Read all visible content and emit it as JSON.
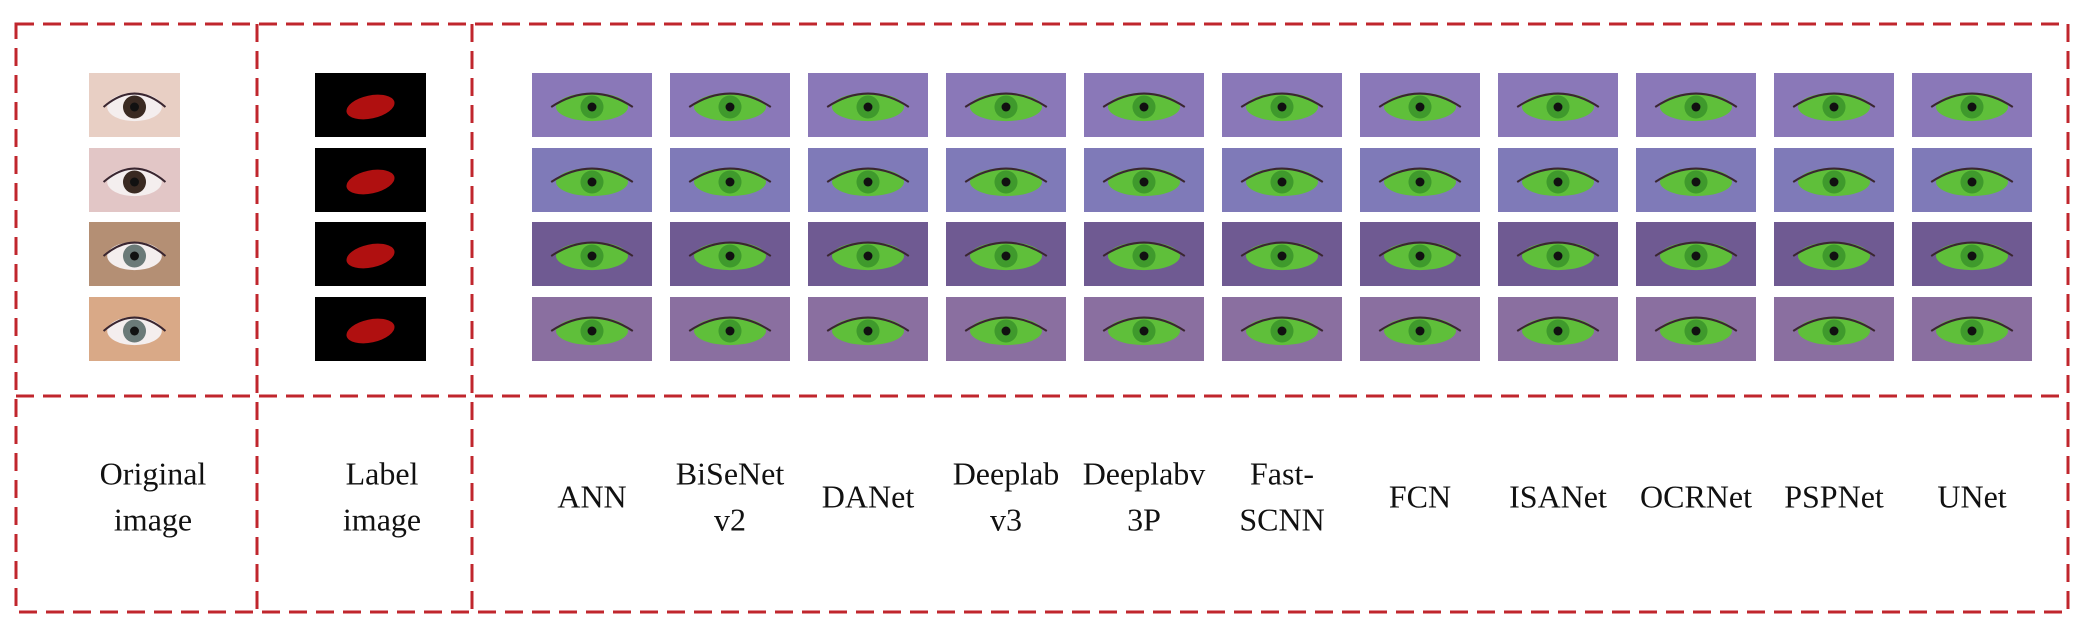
{
  "columns": {
    "original": {
      "lines": [
        "Original",
        "image"
      ]
    },
    "label": {
      "lines": [
        "Label",
        "image"
      ]
    },
    "methods": [
      {
        "lines": [
          "ANN"
        ]
      },
      {
        "lines": [
          "BiSeNet",
          "v2"
        ]
      },
      {
        "lines": [
          "DANet"
        ]
      },
      {
        "lines": [
          "Deeplab",
          "v3"
        ]
      },
      {
        "lines": [
          "Deeplabv",
          "3P"
        ]
      },
      {
        "lines": [
          "Fast-",
          "SCNN"
        ]
      },
      {
        "lines": [
          "FCN"
        ]
      },
      {
        "lines": [
          "ISANet"
        ]
      },
      {
        "lines": [
          "OCRNet"
        ]
      },
      {
        "lines": [
          "PSPNet"
        ]
      },
      {
        "lines": [
          "UNet"
        ]
      }
    ]
  }
}
